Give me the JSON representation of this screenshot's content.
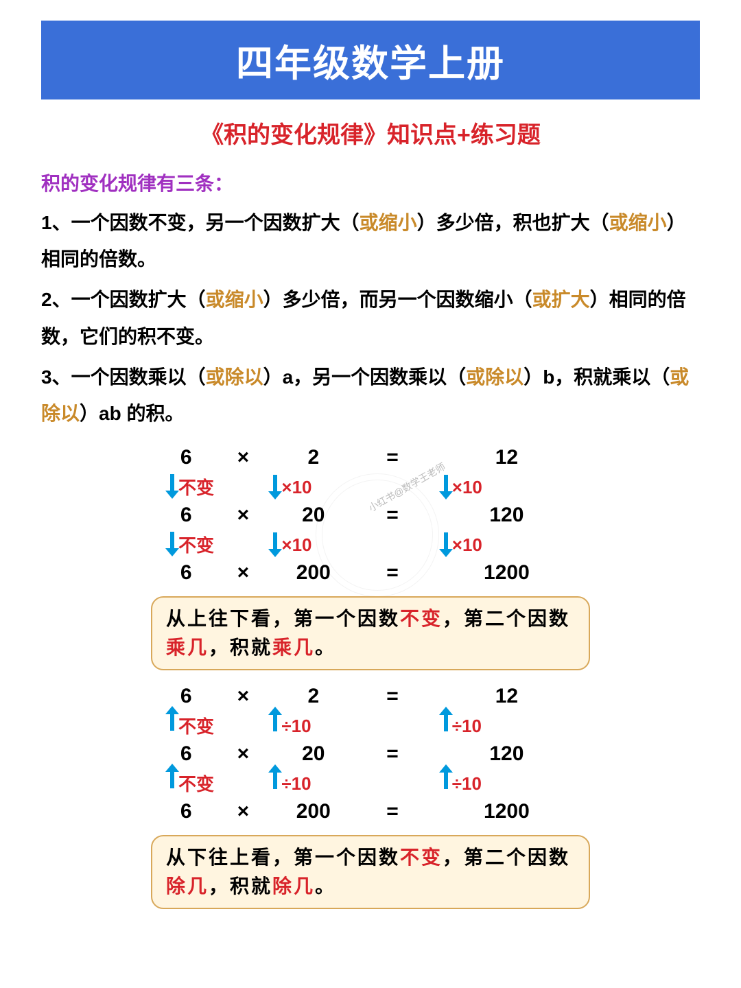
{
  "header": {
    "title": "四年级数学上册"
  },
  "subtitle": "《积的变化规律》知识点+练习题",
  "intro": "积的变化规律有三条：",
  "rules": [
    {
      "num": "1、",
      "segs": [
        "一个因数不变，另一个因数扩大（",
        "或缩小",
        "）多少倍，积也扩大（",
        "或缩小",
        "）相同的倍数。"
      ]
    },
    {
      "num": "2、",
      "segs": [
        "一个因数扩大（",
        "或缩小",
        "）多少倍，而另一个因数缩小（",
        "或扩大",
        "）相同的倍数，它们的积不变。"
      ]
    },
    {
      "num": "3、",
      "segs": [
        "一个因数乘以（",
        "或除以",
        "）a，另一个因数乘以（",
        "或除以",
        "）b，积就乘以（",
        "或除以",
        "）ab 的积。"
      ]
    }
  ],
  "diagram1": {
    "rows": [
      [
        "6",
        "×",
        "2",
        "=",
        "12"
      ],
      [
        "6",
        "×",
        "20",
        "=",
        "120"
      ],
      [
        "6",
        "×",
        "200",
        "=",
        "1200"
      ]
    ],
    "arrow_dir": "down",
    "arrow_labels": [
      "不变",
      "×10",
      "×10"
    ],
    "note_parts": [
      "从上往下看，第一个因数",
      "不变",
      "，第二个因数",
      "乘几",
      "，积就",
      "乘几",
      "。"
    ]
  },
  "diagram2": {
    "rows": [
      [
        "6",
        "×",
        "2",
        "=",
        "12"
      ],
      [
        "6",
        "×",
        "20",
        "=",
        "120"
      ],
      [
        "6",
        "×",
        "200",
        "=",
        "1200"
      ]
    ],
    "arrow_dir": "up",
    "arrow_labels": [
      "不变",
      "÷10",
      "÷10"
    ],
    "note_parts": [
      "从下往上看，第一个因数",
      "不变",
      "，第二个因数",
      "除几",
      "，积就",
      "除几",
      "。"
    ]
  },
  "watermark": "小红书@数学王老师",
  "colors": {
    "banner_bg": "#3a6fd8",
    "banner_fg": "#ffffff",
    "subtitle": "#d8232a",
    "intro": "#a030c0",
    "highlight": "#c98a2a",
    "arrow": "#0099dd",
    "arrow_label": "#d8232a",
    "note_bg": "#fff5e0",
    "note_border": "#d8a85a",
    "note_accent": "#d8232a"
  }
}
